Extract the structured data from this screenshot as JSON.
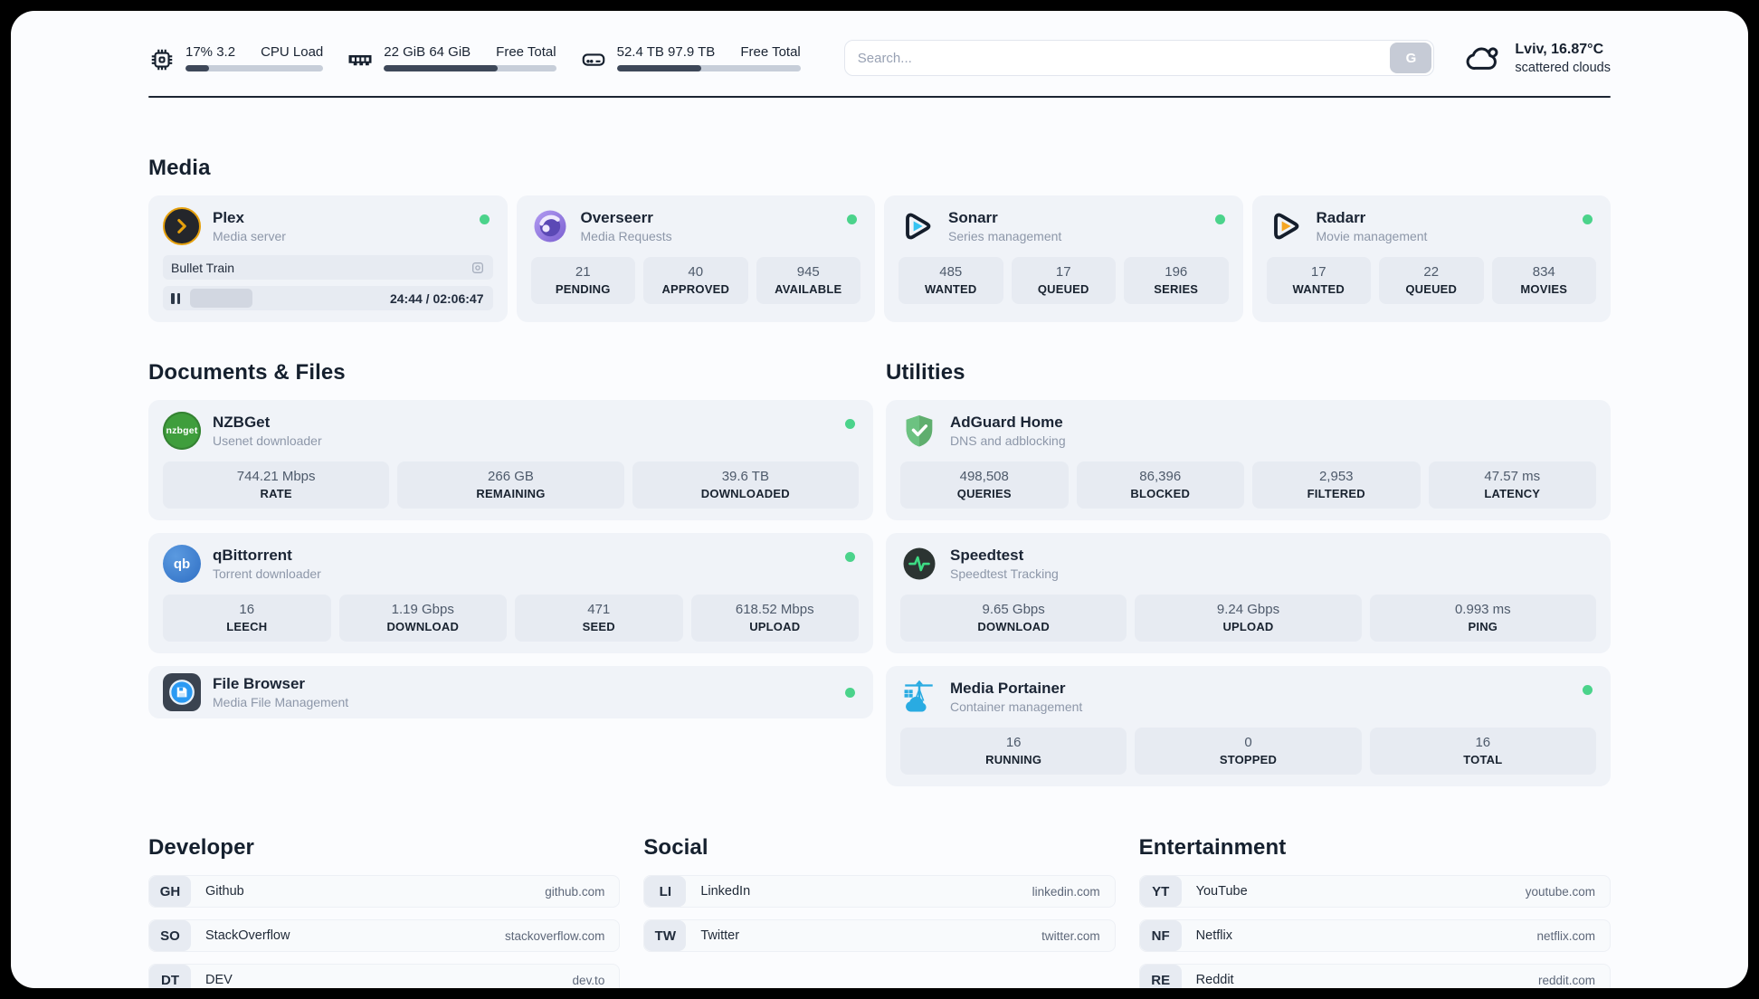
{
  "header": {
    "cpu": {
      "percent": "17%",
      "load": "3.2",
      "label1": "CPU",
      "label2": "Load",
      "progress": 17
    },
    "ram": {
      "free": "22 GiB",
      "total": "64 GiB",
      "label1": "Free",
      "label2": "Total",
      "progress": 66
    },
    "disk": {
      "free": "52.4 TB",
      "total": "97.9 TB",
      "label1": "Free",
      "label2": "Total",
      "progress": 46
    },
    "search": {
      "placeholder": "Search...",
      "button_label": "G"
    },
    "weather": {
      "location": "Lviv, 16.87°C",
      "condition": "scattered clouds"
    }
  },
  "media": {
    "title": "Media",
    "plex": {
      "name": "Plex",
      "subtitle": "Media server",
      "now_playing": "Bullet Train",
      "time": "24:44 / 02:06:47",
      "progress": 19
    },
    "overseerr": {
      "name": "Overseerr",
      "subtitle": "Media Requests",
      "stats": [
        {
          "value": "21",
          "label": "PENDING"
        },
        {
          "value": "40",
          "label": "APPROVED"
        },
        {
          "value": "945",
          "label": "AVAILABLE"
        }
      ]
    },
    "sonarr": {
      "name": "Sonarr",
      "subtitle": "Series management",
      "stats": [
        {
          "value": "485",
          "label": "WANTED"
        },
        {
          "value": "17",
          "label": "QUEUED"
        },
        {
          "value": "196",
          "label": "SERIES"
        }
      ]
    },
    "radarr": {
      "name": "Radarr",
      "subtitle": "Movie management",
      "stats": [
        {
          "value": "17",
          "label": "WANTED"
        },
        {
          "value": "22",
          "label": "QUEUED"
        },
        {
          "value": "834",
          "label": "MOVIES"
        }
      ]
    }
  },
  "documents": {
    "title": "Documents & Files",
    "nzbget": {
      "name": "NZBGet",
      "subtitle": "Usenet downloader",
      "icon_text": "nzbget",
      "stats": [
        {
          "value": "744.21 Mbps",
          "label": "RATE"
        },
        {
          "value": "266 GB",
          "label": "REMAINING"
        },
        {
          "value": "39.6 TB",
          "label": "DOWNLOADED"
        }
      ]
    },
    "qbittorrent": {
      "name": "qBittorrent",
      "subtitle": "Torrent downloader",
      "icon_text": "qb",
      "stats": [
        {
          "value": "16",
          "label": "LEECH"
        },
        {
          "value": "1.19 Gbps",
          "label": "DOWNLOAD"
        },
        {
          "value": "471",
          "label": "SEED"
        },
        {
          "value": "618.52 Mbps",
          "label": "UPLOAD"
        }
      ]
    },
    "filebrowser": {
      "name": "File Browser",
      "subtitle": "Media File Management"
    }
  },
  "utilities": {
    "title": "Utilities",
    "adguard": {
      "name": "AdGuard Home",
      "subtitle": "DNS and adblocking",
      "stats": [
        {
          "value": "498,508",
          "label": "QUERIES"
        },
        {
          "value": "86,396",
          "label": "BLOCKED"
        },
        {
          "value": "2,953",
          "label": "FILTERED"
        },
        {
          "value": "47.57 ms",
          "label": "LATENCY"
        }
      ]
    },
    "speedtest": {
      "name": "Speedtest",
      "subtitle": "Speedtest Tracking",
      "stats": [
        {
          "value": "9.65 Gbps",
          "label": "DOWNLOAD"
        },
        {
          "value": "9.24 Gbps",
          "label": "UPLOAD"
        },
        {
          "value": "0.993 ms",
          "label": "PING"
        }
      ]
    },
    "portainer": {
      "name": "Media Portainer",
      "subtitle": "Container management",
      "stats": [
        {
          "value": "16",
          "label": "RUNNING"
        },
        {
          "value": "0",
          "label": "STOPPED"
        },
        {
          "value": "16",
          "label": "TOTAL"
        }
      ]
    }
  },
  "bookmarks": {
    "developer": {
      "title": "Developer",
      "items": [
        {
          "abbr": "GH",
          "name": "Github",
          "url": "github.com"
        },
        {
          "abbr": "SO",
          "name": "StackOverflow",
          "url": "stackoverflow.com"
        },
        {
          "abbr": "DT",
          "name": "DEV",
          "url": "dev.to"
        }
      ]
    },
    "social": {
      "title": "Social",
      "items": [
        {
          "abbr": "LI",
          "name": "LinkedIn",
          "url": "linkedin.com"
        },
        {
          "abbr": "TW",
          "name": "Twitter",
          "url": "twitter.com"
        }
      ]
    },
    "entertainment": {
      "title": "Entertainment",
      "items": [
        {
          "abbr": "YT",
          "name": "YouTube",
          "url": "youtube.com"
        },
        {
          "abbr": "NF",
          "name": "Netflix",
          "url": "netflix.com"
        },
        {
          "abbr": "RE",
          "name": "Reddit",
          "url": "reddit.com"
        }
      ]
    }
  },
  "colors": {
    "status_green": "#4bd38b",
    "progress_fill": "#3e4859",
    "accent_plex": "#e5a00d",
    "portainer_blue": "#29abe2"
  }
}
